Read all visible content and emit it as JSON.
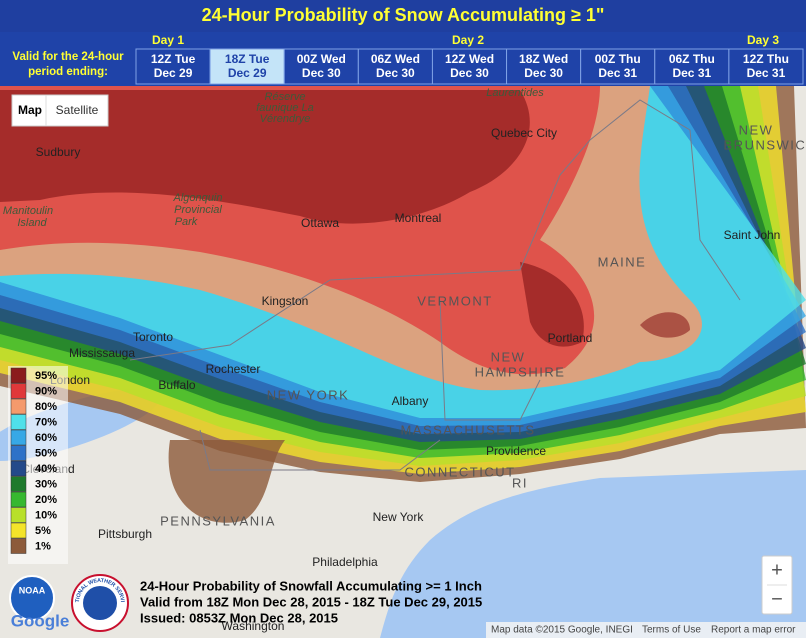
{
  "header": {
    "title": "24-Hour Probability of Snow Accumulating ≥ 1\"",
    "valid_label": [
      "Valid for the 24-hour",
      "period ending:"
    ],
    "days": [
      "Day 1",
      "Day 2",
      "Day 3"
    ],
    "periods": [
      {
        "time": "12Z Tue",
        "date": "Dec 29"
      },
      {
        "time": "18Z Tue",
        "date": "Dec 29",
        "selected": true
      },
      {
        "time": "00Z Wed",
        "date": "Dec 30"
      },
      {
        "time": "06Z Wed",
        "date": "Dec 30"
      },
      {
        "time": "12Z Wed",
        "date": "Dec 30"
      },
      {
        "time": "18Z Wed",
        "date": "Dec 30"
      },
      {
        "time": "00Z Thu",
        "date": "Dec 31"
      },
      {
        "time": "06Z Thu",
        "date": "Dec 31"
      },
      {
        "time": "12Z Thu",
        "date": "Dec 31"
      }
    ]
  },
  "controls": {
    "map_type": [
      "Map",
      "Satellite"
    ],
    "zoom": [
      "+",
      "−"
    ]
  },
  "legend": {
    "items": [
      {
        "label": "95%",
        "color": "#8b1c1c"
      },
      {
        "label": "90%",
        "color": "#e0383a"
      },
      {
        "label": "80%",
        "color": "#f59a6c"
      },
      {
        "label": "70%",
        "color": "#4fe0ea"
      },
      {
        "label": "60%",
        "color": "#37a8e6"
      },
      {
        "label": "50%",
        "color": "#2e72c8"
      },
      {
        "label": "40%",
        "color": "#244a8a"
      },
      {
        "label": "30%",
        "color": "#1e7a2c"
      },
      {
        "label": "20%",
        "color": "#36b830"
      },
      {
        "label": "10%",
        "color": "#b8e02a"
      },
      {
        "label": "5%",
        "color": "#f4e42a"
      },
      {
        "label": "1%",
        "color": "#8c5a3a"
      }
    ]
  },
  "map": {
    "places": [
      "Sudbury",
      "Manitoulin",
      "Island",
      "Algonquin",
      "Provincial",
      "Park",
      "Réserve",
      "faunique La",
      "Vérendrye",
      "Ottawa",
      "Montreal",
      "Quebec City",
      "Laurentides",
      "NEW",
      "BRUNSWICK",
      "Saint John",
      "MAINE",
      "VERMONT",
      "NEW",
      "HAMPSHIRE",
      "Portland",
      "Kingston",
      "Toronto",
      "Mississauga",
      "London",
      "Buffalo",
      "Rochester",
      "NEW YORK",
      "Albany",
      "MASSACHUSETTS",
      "Providence",
      "CONNECTICUT",
      "RI",
      "Cleveland",
      "PENNSYLVANIA",
      "Pittsburgh",
      "New York",
      "Philadelphia",
      "Washington"
    ]
  },
  "caption": [
    "24-Hour Probability of Snowfall Accumulating >= 1 Inch",
    "Valid from 18Z Mon Dec 28, 2015 - 18Z Tue Dec 29, 2015",
    "Issued: 0853Z Mon Dec 28, 2015"
  ],
  "logos": {
    "noaa": "NOAA",
    "nws": "NATIONAL WEATHER SERVICE",
    "google": "Google"
  },
  "footer": {
    "map_data": "Map data ©2015 Google, INEGI",
    "terms": "Terms of Use",
    "report": "Report a map error"
  }
}
